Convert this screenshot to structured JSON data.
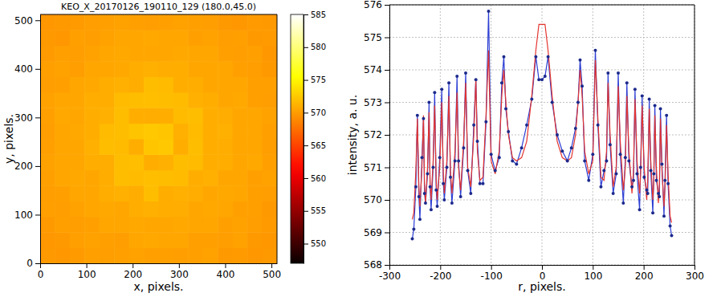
{
  "chart_data": [
    {
      "type": "heatmap",
      "title": "KEO_X_20170126_190110_129 (180.0,45.0)",
      "x_label": "x, pixels.",
      "y_label": "y, pixels.",
      "xlim": [
        0,
        512
      ],
      "ylim": [
        0,
        512
      ],
      "xticks": [
        0,
        100,
        200,
        300,
        400,
        500
      ],
      "yticks": [
        0,
        100,
        200,
        300,
        400,
        500
      ],
      "cells": [
        [
          569.8,
          569.7,
          569.9,
          570.2,
          570.1,
          570.2,
          570.3,
          570.2,
          570.2,
          570.1,
          570.2,
          570.3,
          569.8,
          569.9,
          569.7,
          569.8
        ],
        [
          569.7,
          569.8,
          570.2,
          570.3,
          570.2,
          570.1,
          570.6,
          570.7,
          570.6,
          570.5,
          570.2,
          570.2,
          570.1,
          570.3,
          569.8,
          569.7
        ],
        [
          569.8,
          570.2,
          570.1,
          570.2,
          570.6,
          570.5,
          570.7,
          570.6,
          570.6,
          570.7,
          570.5,
          570.6,
          570.2,
          570.3,
          570.1,
          569.9
        ],
        [
          570.2,
          570.1,
          570.3,
          570.6,
          570.7,
          570.5,
          571.0,
          571.1,
          571.0,
          570.9,
          570.6,
          570.7,
          570.5,
          570.2,
          570.2,
          569.8
        ],
        [
          570.1,
          570.2,
          570.6,
          570.5,
          571.0,
          571.1,
          570.9,
          571.8,
          571.0,
          571.1,
          570.9,
          570.6,
          570.7,
          570.6,
          570.2,
          570.1
        ],
        [
          570.2,
          570.6,
          570.7,
          570.5,
          571.0,
          571.8,
          571.7,
          571.9,
          571.8,
          571.7,
          571.0,
          571.1,
          570.6,
          570.5,
          570.2,
          570.3
        ],
        [
          570.3,
          570.6,
          570.5,
          571.0,
          570.9,
          571.8,
          571.9,
          571.0,
          571.1,
          571.8,
          571.7,
          571.0,
          571.0,
          570.6,
          570.7,
          570.2
        ],
        [
          570.2,
          570.5,
          570.6,
          571.1,
          571.8,
          571.7,
          571.0,
          572.3,
          572.4,
          571.0,
          571.8,
          571.0,
          570.9,
          570.6,
          570.5,
          570.1
        ],
        [
          570.1,
          570.6,
          570.7,
          571.0,
          571.7,
          571.8,
          572.2,
          572.4,
          572.3,
          571.1,
          571.7,
          571.0,
          571.1,
          570.6,
          570.6,
          570.2
        ],
        [
          570.2,
          570.7,
          570.6,
          571.0,
          571.1,
          571.8,
          571.0,
          570.9,
          571.0,
          571.7,
          571.8,
          571.0,
          570.9,
          570.5,
          570.6,
          570.3
        ],
        [
          570.3,
          570.5,
          570.6,
          571.0,
          571.0,
          571.7,
          571.8,
          571.9,
          571.8,
          571.7,
          571.1,
          571.0,
          570.6,
          570.7,
          570.2,
          570.1
        ],
        [
          570.1,
          570.2,
          570.6,
          570.7,
          571.0,
          571.1,
          570.9,
          571.8,
          571.7,
          571.0,
          571.0,
          570.6,
          570.5,
          570.6,
          570.2,
          570.2
        ],
        [
          570.2,
          570.3,
          570.1,
          570.6,
          570.5,
          570.7,
          571.0,
          571.1,
          570.9,
          571.0,
          570.6,
          570.6,
          570.5,
          570.2,
          570.1,
          569.8
        ],
        [
          569.9,
          570.2,
          570.1,
          570.3,
          570.6,
          570.7,
          570.5,
          570.6,
          570.6,
          570.7,
          570.6,
          570.5,
          570.2,
          570.1,
          570.2,
          569.7
        ],
        [
          569.8,
          569.7,
          570.2,
          570.1,
          570.3,
          570.6,
          570.5,
          570.7,
          570.6,
          570.6,
          570.2,
          570.3,
          570.1,
          570.2,
          569.8,
          569.9
        ],
        [
          569.7,
          569.8,
          569.9,
          570.1,
          570.2,
          570.3,
          570.2,
          570.1,
          570.2,
          570.3,
          570.2,
          570.1,
          569.8,
          569.7,
          569.9,
          569.8
        ]
      ],
      "colorbar": {
        "range": [
          547,
          585
        ],
        "ticks": [
          550,
          555,
          560,
          565,
          570,
          575,
          580,
          585
        ]
      }
    },
    {
      "type": "line",
      "x_label": "r, pixels.",
      "y_label": "intensity, a. u.",
      "xlim": [
        -300,
        300
      ],
      "xticks": [
        -300,
        -200,
        -100,
        0,
        100,
        200,
        300
      ],
      "ylim": [
        568,
        576
      ],
      "yticks": [
        568,
        569,
        570,
        571,
        572,
        573,
        574,
        575,
        576
      ],
      "grid": true,
      "x": [
        -255,
        -252,
        -248,
        -245,
        -242,
        -240,
        -236,
        -233,
        -231,
        -229,
        -225,
        -222,
        -220,
        -218,
        -214,
        -211,
        -208,
        -206,
        -201,
        -197,
        -194,
        -192,
        -187,
        -183,
        -180,
        -177,
        -171,
        -167,
        -164,
        -160,
        -154,
        -150,
        -146,
        -140,
        -134,
        -130,
        -127,
        -122,
        -116,
        -110,
        -105,
        -100,
        -92,
        -84,
        -79,
        -75,
        -71,
        -66,
        -58,
        -50,
        -40,
        -30,
        -20,
        -12,
        -6,
        0,
        6,
        12,
        20,
        30,
        40,
        50,
        58,
        66,
        71,
        75,
        79,
        84,
        92,
        100,
        105,
        110,
        116,
        122,
        127,
        130,
        134,
        140,
        146,
        150,
        154,
        160,
        164,
        167,
        171,
        177,
        180,
        183,
        187,
        192,
        194,
        197,
        201,
        206,
        208,
        211,
        214,
        218,
        220,
        222,
        225,
        229,
        231,
        233,
        236,
        240,
        242,
        245,
        248,
        252,
        255
      ],
      "series": [
        {
          "color": "#2d3fd3",
          "marker": "o",
          "values": [
            568.8,
            569.1,
            570.4,
            572.6,
            570.1,
            569.4,
            571.3,
            572.5,
            570.2,
            569.9,
            570.8,
            573.0,
            570.4,
            569.7,
            571.0,
            573.3,
            570.3,
            569.8,
            571.3,
            573.4,
            570.5,
            570.0,
            571.0,
            573.6,
            570.7,
            569.9,
            571.2,
            573.8,
            571.2,
            570.1,
            571.6,
            573.9,
            570.9,
            570.2,
            572.3,
            573.7,
            571.8,
            570.5,
            570.5,
            572.4,
            575.8,
            571.4,
            570.9,
            571.3,
            573.6,
            574.4,
            572.8,
            572.1,
            571.2,
            571.1,
            571.6,
            572.3,
            573.1,
            574.4,
            573.7,
            573.7,
            573.8,
            574.4,
            573.0,
            572.0,
            571.5,
            571.2,
            571.6,
            572.2,
            573.0,
            574.3,
            573.5,
            571.2,
            570.6,
            571.4,
            574.6,
            572.3,
            570.4,
            570.9,
            571.2,
            573.9,
            571.7,
            570.2,
            570.8,
            573.9,
            571.4,
            569.9,
            571.3,
            573.6,
            571.2,
            570.4,
            570.6,
            573.4,
            570.8,
            569.7,
            571.0,
            573.2,
            570.7,
            570.3,
            570.2,
            573.1,
            570.9,
            569.6,
            570.8,
            572.9,
            570.6,
            570.2,
            570.1,
            572.8,
            571.1,
            569.5,
            570.6,
            572.6,
            570.5,
            569.2,
            568.9
          ]
        },
        {
          "color": "#e3342f",
          "values": [
            569.4,
            569.6,
            570.9,
            572.5,
            570.4,
            569.8,
            571.0,
            572.6,
            570.5,
            569.9,
            571.0,
            572.7,
            570.5,
            570.0,
            571.2,
            572.9,
            570.6,
            570.0,
            571.0,
            573.0,
            570.8,
            570.2,
            571.2,
            573.2,
            570.9,
            570.2,
            571.5,
            573.3,
            571.0,
            570.3,
            571.8,
            573.6,
            571.0,
            570.4,
            572.0,
            573.7,
            571.5,
            570.6,
            570.7,
            572.6,
            574.6,
            571.2,
            570.8,
            571.5,
            573.2,
            574.0,
            573.0,
            572.0,
            571.3,
            571.2,
            571.3,
            571.8,
            573.2,
            574.6,
            575.4,
            575.4,
            575.4,
            574.6,
            573.2,
            571.8,
            571.3,
            571.2,
            571.3,
            572.0,
            573.0,
            574.0,
            573.2,
            571.5,
            570.8,
            571.2,
            574.3,
            572.5,
            570.7,
            570.6,
            571.5,
            573.6,
            572.0,
            570.4,
            571.0,
            573.5,
            571.8,
            570.3,
            571.0,
            573.2,
            571.5,
            570.2,
            570.9,
            573.1,
            571.2,
            570.2,
            570.8,
            572.9,
            571.0,
            570.0,
            570.6,
            572.8,
            571.2,
            570.0,
            570.5,
            572.6,
            571.0,
            569.9,
            570.5,
            572.5,
            570.9,
            569.8,
            570.4,
            572.3,
            570.8,
            569.5,
            569.3
          ]
        }
      ]
    }
  ]
}
